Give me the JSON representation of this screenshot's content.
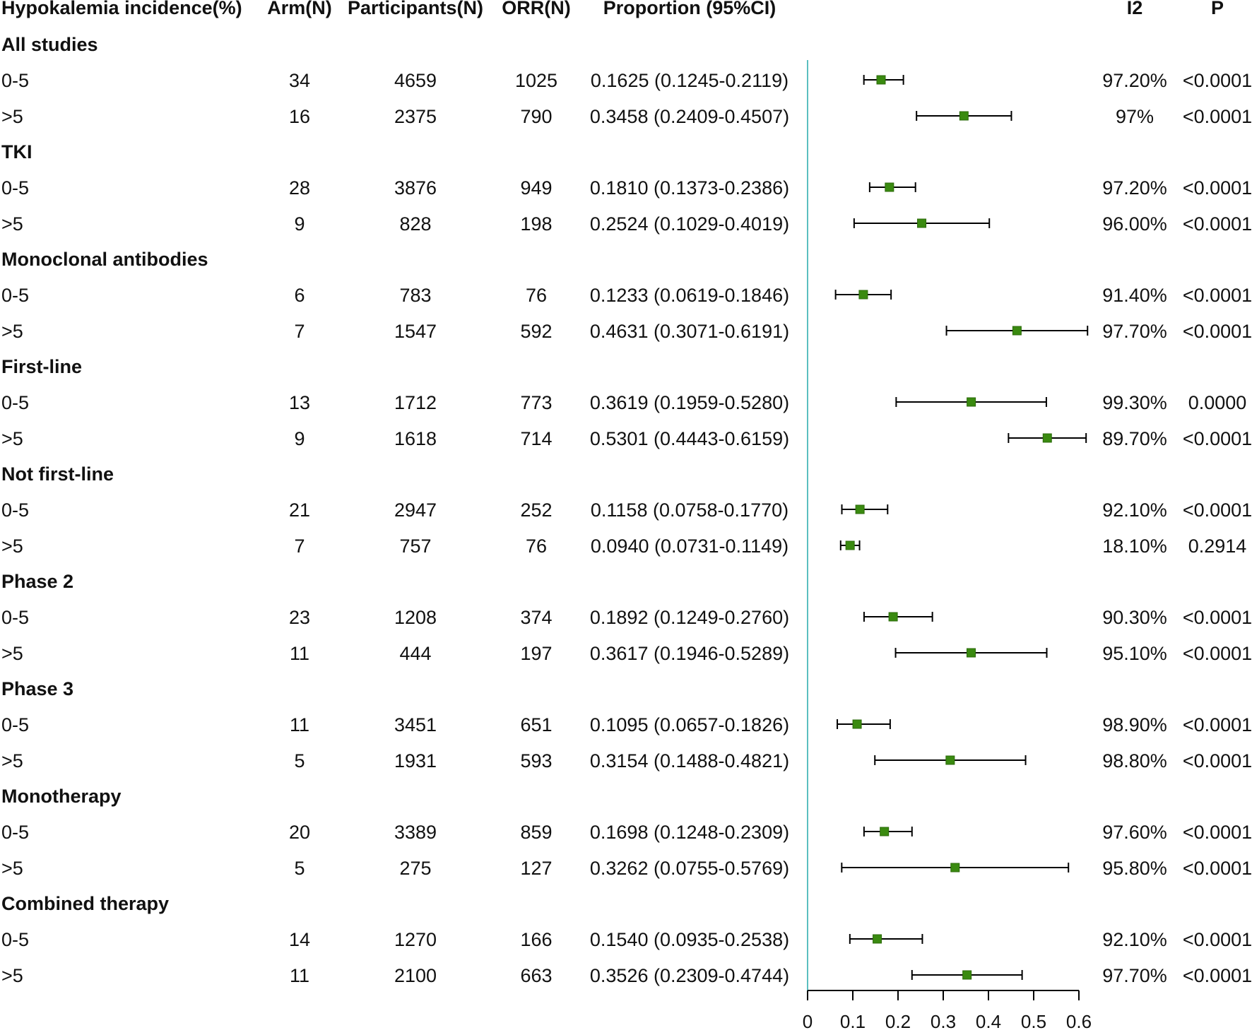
{
  "chart_data": {
    "type": "forest",
    "title": "",
    "columns": {
      "subgroup": "Hypokalemia incidence(%)",
      "arm": "Arm(N)",
      "participants": "Participants(N)",
      "orr": "ORR(N)",
      "proportion": "Proportion (95%CI)",
      "i2": "I2",
      "p": "P"
    },
    "xlim": [
      0,
      0.6
    ],
    "xticks": [
      0,
      0.1,
      0.2,
      0.3,
      0.4,
      0.5,
      0.6
    ],
    "tick_labels": [
      "0",
      "0.1",
      "0.2",
      "0.3",
      "0.4",
      "0.5",
      "0.6"
    ],
    "reference_line": 0,
    "colors": {
      "marker": "#3a8a10",
      "marker_border": "#2b6a0a",
      "whisker": "#000000",
      "reference_line": "#5bbfc0",
      "axis": "#000000"
    },
    "groups": [
      {
        "name": "All studies",
        "rows": [
          {
            "label": "0-5",
            "arm": "34",
            "participants": "4659",
            "orr": "1025",
            "proportion_text": "0.1625 (0.1245-0.2119)",
            "estimate": 0.1625,
            "lower": 0.1245,
            "upper": 0.2119,
            "i2": "97.20%",
            "p": "<0.0001"
          },
          {
            "label": ">5",
            "arm": "16",
            "participants": "2375",
            "orr": "790",
            "proportion_text": "0.3458 (0.2409-0.4507)",
            "estimate": 0.3458,
            "lower": 0.2409,
            "upper": 0.4507,
            "i2": "97%",
            "p": "<0.0001"
          }
        ]
      },
      {
        "name": "TKI",
        "rows": [
          {
            "label": "0-5",
            "arm": "28",
            "participants": "3876",
            "orr": "949",
            "proportion_text": "0.1810 (0.1373-0.2386)",
            "estimate": 0.181,
            "lower": 0.1373,
            "upper": 0.2386,
            "i2": "97.20%",
            "p": "<0.0001"
          },
          {
            "label": ">5",
            "arm": "9",
            "participants": "828",
            "orr": "198",
            "proportion_text": "0.2524 (0.1029-0.4019)",
            "estimate": 0.2524,
            "lower": 0.1029,
            "upper": 0.4019,
            "i2": "96.00%",
            "p": "<0.0001"
          }
        ]
      },
      {
        "name": "Monoclonal antibodies",
        "rows": [
          {
            "label": "0-5",
            "arm": "6",
            "participants": "783",
            "orr": "76",
            "proportion_text": "0.1233 (0.0619-0.1846)",
            "estimate": 0.1233,
            "lower": 0.0619,
            "upper": 0.1846,
            "i2": "91.40%",
            "p": "<0.0001"
          },
          {
            "label": ">5",
            "arm": "7",
            "participants": "1547",
            "orr": "592",
            "proportion_text": "0.4631 (0.3071-0.6191)",
            "estimate": 0.4631,
            "lower": 0.3071,
            "upper": 0.6191,
            "i2": "97.70%",
            "p": "<0.0001"
          }
        ]
      },
      {
        "name": "First-line",
        "rows": [
          {
            "label": "0-5",
            "arm": "13",
            "participants": "1712",
            "orr": "773",
            "proportion_text": "0.3619 (0.1959-0.5280)",
            "estimate": 0.3619,
            "lower": 0.1959,
            "upper": 0.528,
            "i2": "99.30%",
            "p": "0.0000"
          },
          {
            "label": ">5",
            "arm": "9",
            "participants": "1618",
            "orr": "714",
            "proportion_text": "0.5301 (0.4443-0.6159)",
            "estimate": 0.5301,
            "lower": 0.4443,
            "upper": 0.6159,
            "i2": "89.70%",
            "p": "<0.0001"
          }
        ]
      },
      {
        "name": "Not first-line",
        "rows": [
          {
            "label": "0-5",
            "arm": "21",
            "participants": "2947",
            "orr": "252",
            "proportion_text": "0.1158 (0.0758-0.1770)",
            "estimate": 0.1158,
            "lower": 0.0758,
            "upper": 0.177,
            "i2": "92.10%",
            "p": "<0.0001"
          },
          {
            "label": ">5",
            "arm": "7",
            "participants": "757",
            "orr": "76",
            "proportion_text": "0.0940 (0.0731-0.1149)",
            "estimate": 0.094,
            "lower": 0.0731,
            "upper": 0.1149,
            "i2": "18.10%",
            "p": "0.2914"
          }
        ]
      },
      {
        "name": "Phase 2",
        "rows": [
          {
            "label": "0-5",
            "arm": "23",
            "participants": "1208",
            "orr": "374",
            "proportion_text": "0.1892 (0.1249-0.2760)",
            "estimate": 0.1892,
            "lower": 0.1249,
            "upper": 0.276,
            "i2": "90.30%",
            "p": "<0.0001"
          },
          {
            "label": ">5",
            "arm": "11",
            "participants": "444",
            "orr": "197",
            "proportion_text": "0.3617 (0.1946-0.5289)",
            "estimate": 0.3617,
            "lower": 0.1946,
            "upper": 0.5289,
            "i2": "95.10%",
            "p": "<0.0001"
          }
        ]
      },
      {
        "name": "Phase 3",
        "rows": [
          {
            "label": "0-5",
            "arm": "11",
            "participants": "3451",
            "orr": "651",
            "proportion_text": "0.1095 (0.0657-0.1826)",
            "estimate": 0.1095,
            "lower": 0.0657,
            "upper": 0.1826,
            "i2": "98.90%",
            "p": "<0.0001"
          },
          {
            "label": ">5",
            "arm": "5",
            "participants": "1931",
            "orr": "593",
            "proportion_text": "0.3154 (0.1488-0.4821)",
            "estimate": 0.3154,
            "lower": 0.1488,
            "upper": 0.4821,
            "i2": "98.80%",
            "p": "<0.0001"
          }
        ]
      },
      {
        "name": "Monotherapy",
        "rows": [
          {
            "label": "0-5",
            "arm": "20",
            "participants": "3389",
            "orr": "859",
            "proportion_text": "0.1698 (0.1248-0.2309)",
            "estimate": 0.1698,
            "lower": 0.1248,
            "upper": 0.2309,
            "i2": "97.60%",
            "p": "<0.0001"
          },
          {
            "label": ">5",
            "arm": "5",
            "participants": "275",
            "orr": "127",
            "proportion_text": "0.3262 (0.0755-0.5769)",
            "estimate": 0.3262,
            "lower": 0.0755,
            "upper": 0.5769,
            "i2": "95.80%",
            "p": "<0.0001"
          }
        ]
      },
      {
        "name": "Combined therapy",
        "rows": [
          {
            "label": "0-5",
            "arm": "14",
            "participants": "1270",
            "orr": "166",
            "proportion_text": "0.1540 (0.0935-0.2538)",
            "estimate": 0.154,
            "lower": 0.0935,
            "upper": 0.2538,
            "i2": "92.10%",
            "p": "<0.0001"
          },
          {
            "label": ">5",
            "arm": "11",
            "participants": "2100",
            "orr": "663",
            "proportion_text": "0.3526 (0.2309-0.4744)",
            "estimate": 0.3526,
            "lower": 0.2309,
            "upper": 0.4744,
            "i2": "97.70%",
            "p": "<0.0001"
          }
        ]
      }
    ]
  }
}
